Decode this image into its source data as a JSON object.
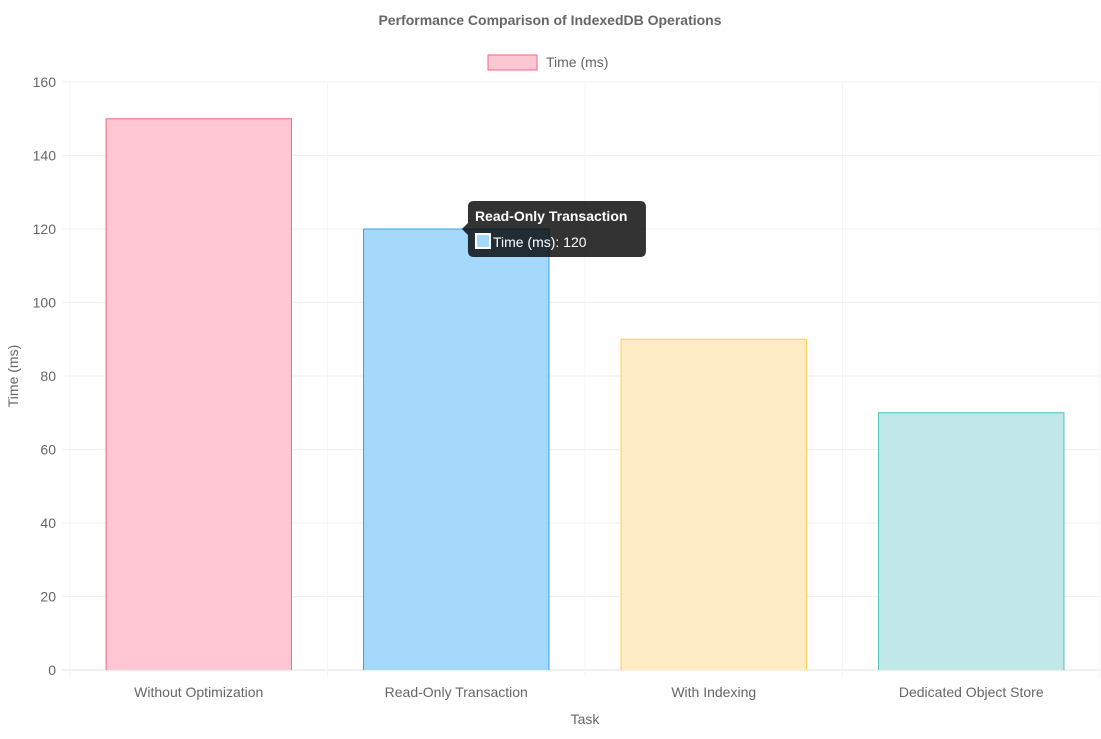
{
  "chart_data": {
    "type": "bar",
    "title": "Performance Comparison of IndexedDB Operations",
    "xlabel": "Task",
    "ylabel": "Time (ms)",
    "categories": [
      "Without Optimization",
      "Read-Only Transaction",
      "With Indexing",
      "Dedicated Object Store"
    ],
    "series": [
      {
        "name": "Time (ms)",
        "values": [
          150,
          120,
          90,
          70
        ],
        "fill_colors": [
          "#ffc6d3",
          "#a5d9fc",
          "#feedc4",
          "#c0e8e8"
        ],
        "border_colors": [
          "#ff6384",
          "#36a2eb",
          "#ffce56",
          "#4bc0c0"
        ]
      }
    ],
    "ylim": [
      0,
      160
    ],
    "yticks": [
      0,
      20,
      40,
      60,
      80,
      100,
      120,
      140,
      160
    ],
    "grid": true,
    "legend": {
      "position": "top",
      "label": "Time (ms)",
      "swatch_fill": "#ffc6d3",
      "swatch_border": "#ff6384"
    },
    "tooltip": {
      "title": "Read-Only Transaction",
      "label": "Time (ms): 120",
      "category_index": 1,
      "swatch_fill": "#a5d9fc",
      "swatch_border": "#ffffff"
    }
  }
}
